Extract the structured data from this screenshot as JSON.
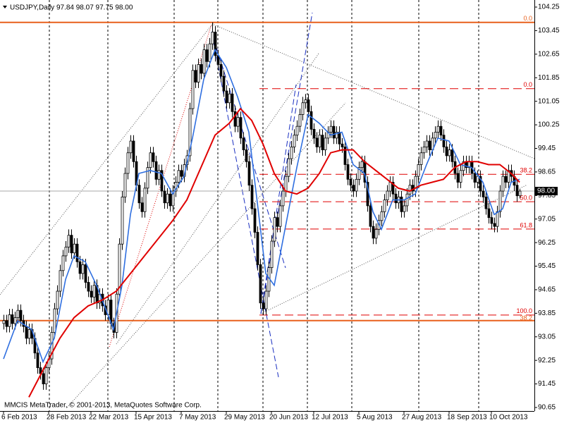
{
  "chart_data": {
    "type": "candlestick",
    "title": "USDJPY,Daily  97.84 98.07 97.75 98.00",
    "watermark": "MMCIS MetaTrader, © 2001-2013, MetaQuotes Software Corp.",
    "ylim": [
      90.53,
      104.49
    ],
    "yticks": [
      104.25,
      103.45,
      102.65,
      101.85,
      101.05,
      100.25,
      99.45,
      98.65,
      97.85,
      97.05,
      96.25,
      95.45,
      94.65,
      93.85,
      93.05,
      92.25,
      91.45,
      90.65
    ],
    "xlim": [
      -1.25,
      188.25
    ],
    "xticks": [
      {
        "value": 0,
        "label": "6 Feb 2013"
      },
      {
        "value": 16,
        "label": "28 Feb 2013"
      },
      {
        "value": 31,
        "label": "22 Mar 2013"
      },
      {
        "value": 47,
        "label": "15 Apr 2013"
      },
      {
        "value": 63,
        "label": "7 May 2013"
      },
      {
        "value": 79,
        "label": "29 May 2013"
      },
      {
        "value": 95,
        "label": "20 Jun 2013"
      },
      {
        "value": 110,
        "label": "12 Jul 2013"
      },
      {
        "value": 126,
        "label": "5 Aug 2013"
      },
      {
        "value": 142,
        "label": "27 Aug 2013"
      },
      {
        "value": 158,
        "label": "18 Sep 2013"
      },
      {
        "value": 173,
        "label": "10 Oct 2013"
      }
    ],
    "current_price": {
      "value": 98.0,
      "label": "98.00"
    },
    "up_color": "#ffffff",
    "down_color": "#000000",
    "ohlc": [
      [
        93.5,
        93.8,
        93.3,
        93.6
      ],
      [
        93.6,
        93.8,
        93.2,
        93.4
      ],
      [
        93.4,
        94.0,
        93.2,
        93.8
      ],
      [
        93.8,
        94.0,
        93.3,
        93.5
      ],
      [
        93.5,
        93.9,
        93.3,
        93.7
      ],
      [
        93.7,
        94.15,
        93.5,
        93.95
      ],
      [
        93.95,
        94.15,
        93.4,
        93.6
      ],
      [
        93.6,
        93.8,
        93.2,
        93.4
      ],
      [
        93.4,
        93.6,
        92.8,
        93.0
      ],
      [
        93.0,
        93.5,
        92.8,
        93.3
      ],
      [
        93.3,
        93.5,
        92.8,
        93.0
      ],
      [
        93.0,
        93.2,
        92.3,
        92.5
      ],
      [
        92.5,
        92.7,
        91.8,
        92.0
      ],
      [
        92.0,
        92.2,
        91.6,
        91.8
      ],
      [
        91.8,
        92.0,
        91.25,
        91.45
      ],
      [
        91.45,
        92.2,
        91.25,
        92.0
      ],
      [
        92.0,
        92.5,
        91.8,
        92.3
      ],
      [
        92.3,
        93.4,
        92.1,
        93.2
      ],
      [
        93.2,
        94.2,
        93.0,
        94.0
      ],
      [
        94.0,
        94.8,
        93.8,
        94.6
      ],
      [
        94.6,
        95.5,
        94.4,
        95.3
      ],
      [
        95.3,
        96.0,
        95.1,
        95.8
      ],
      [
        95.8,
        96.3,
        95.6,
        96.1
      ],
      [
        96.1,
        96.7,
        95.9,
        96.5
      ],
      [
        96.5,
        96.7,
        95.7,
        95.9
      ],
      [
        95.9,
        96.4,
        95.7,
        96.2
      ],
      [
        96.2,
        96.4,
        95.4,
        95.6
      ],
      [
        95.6,
        95.8,
        95.0,
        95.2
      ],
      [
        95.2,
        95.7,
        95.0,
        95.5
      ],
      [
        95.5,
        95.7,
        94.7,
        94.9
      ],
      [
        94.9,
        95.1,
        94.4,
        94.6
      ],
      [
        94.6,
        94.8,
        94.2,
        94.4
      ],
      [
        94.4,
        95.0,
        94.2,
        94.8
      ],
      [
        94.8,
        95.0,
        94.0,
        94.2
      ],
      [
        94.2,
        94.7,
        94.0,
        94.5
      ],
      [
        94.5,
        94.7,
        93.9,
        94.1
      ],
      [
        94.1,
        94.3,
        93.6,
        93.8
      ],
      [
        93.8,
        94.5,
        93.6,
        94.3
      ],
      [
        94.3,
        94.5,
        93.3,
        93.5
      ],
      [
        93.5,
        93.7,
        93.0,
        93.2
      ],
      [
        93.2,
        94.7,
        93.0,
        94.5
      ],
      [
        94.5,
        96.4,
        94.3,
        96.2
      ],
      [
        96.2,
        98.0,
        96.0,
        97.8
      ],
      [
        97.8,
        98.8,
        97.6,
        98.6
      ],
      [
        98.6,
        99.5,
        98.4,
        99.3
      ],
      [
        99.3,
        99.9,
        99.1,
        99.7
      ],
      [
        99.7,
        99.9,
        98.8,
        99.0
      ],
      [
        99.0,
        99.2,
        98.0,
        98.2
      ],
      [
        98.2,
        98.4,
        97.4,
        97.6
      ],
      [
        97.6,
        97.8,
        97.1,
        97.3
      ],
      [
        97.3,
        98.3,
        97.1,
        98.1
      ],
      [
        98.1,
        99.0,
        97.9,
        98.8
      ],
      [
        98.8,
        99.5,
        98.6,
        99.3
      ],
      [
        99.3,
        99.5,
        98.8,
        99.0
      ],
      [
        99.0,
        99.2,
        98.2,
        98.4
      ],
      [
        98.4,
        98.9,
        98.2,
        98.7
      ],
      [
        98.7,
        98.9,
        97.8,
        98.0
      ],
      [
        98.0,
        98.2,
        97.4,
        97.6
      ],
      [
        97.6,
        98.1,
        97.4,
        97.9
      ],
      [
        97.9,
        98.1,
        97.3,
        97.5
      ],
      [
        97.5,
        98.2,
        97.3,
        98.0
      ],
      [
        98.0,
        98.5,
        97.8,
        98.3
      ],
      [
        98.3,
        98.9,
        98.1,
        98.7
      ],
      [
        98.7,
        98.9,
        98.3,
        98.5
      ],
      [
        98.5,
        99.1,
        98.3,
        98.9
      ],
      [
        98.9,
        99.4,
        98.7,
        99.2
      ],
      [
        99.2,
        101.0,
        99.0,
        100.8
      ],
      [
        100.8,
        102.3,
        100.6,
        102.1
      ],
      [
        102.1,
        102.3,
        101.5,
        101.7
      ],
      [
        101.7,
        102.5,
        101.5,
        102.3
      ],
      [
        102.3,
        102.5,
        101.8,
        102.0
      ],
      [
        102.0,
        103.0,
        101.8,
        102.8
      ],
      [
        102.8,
        103.0,
        102.2,
        102.4
      ],
      [
        102.4,
        103.2,
        102.2,
        103.0
      ],
      [
        103.0,
        103.73,
        102.8,
        103.4
      ],
      [
        103.4,
        103.6,
        102.4,
        102.6
      ],
      [
        102.6,
        102.8,
        102.1,
        102.3
      ],
      [
        102.3,
        102.5,
        101.7,
        101.9
      ],
      [
        101.9,
        102.1,
        101.2,
        101.4
      ],
      [
        101.4,
        101.6,
        100.8,
        101.0
      ],
      [
        101.0,
        101.5,
        100.8,
        101.3
      ],
      [
        101.3,
        101.5,
        100.5,
        100.7
      ],
      [
        100.7,
        100.9,
        100.0,
        100.2
      ],
      [
        100.2,
        100.7,
        100.0,
        100.5
      ],
      [
        100.5,
        100.7,
        99.6,
        99.8
      ],
      [
        99.8,
        100.0,
        99.2,
        99.4
      ],
      [
        99.4,
        99.6,
        98.8,
        99.0
      ],
      [
        99.0,
        99.2,
        98.0,
        98.2
      ],
      [
        98.2,
        98.4,
        97.2,
        97.4
      ],
      [
        97.4,
        97.6,
        96.4,
        96.6
      ],
      [
        96.6,
        96.8,
        95.3,
        95.5
      ],
      [
        95.5,
        95.7,
        94.0,
        94.2
      ],
      [
        94.2,
        94.4,
        93.79,
        94.0
      ],
      [
        94.0,
        94.8,
        93.8,
        94.6
      ],
      [
        94.6,
        95.6,
        94.4,
        95.4
      ],
      [
        95.4,
        96.5,
        95.2,
        96.3
      ],
      [
        96.3,
        97.3,
        96.1,
        97.1
      ],
      [
        97.1,
        97.3,
        96.6,
        96.8
      ],
      [
        96.8,
        97.7,
        96.6,
        97.5
      ],
      [
        97.5,
        98.2,
        97.3,
        98.0
      ],
      [
        98.0,
        98.7,
        97.8,
        98.5
      ],
      [
        98.5,
        99.3,
        98.3,
        99.1
      ],
      [
        99.1,
        99.7,
        98.9,
        99.5
      ],
      [
        99.5,
        100.1,
        99.3,
        99.9
      ],
      [
        99.9,
        100.4,
        99.7,
        100.2
      ],
      [
        100.2,
        100.8,
        100.0,
        100.6
      ],
      [
        100.6,
        101.2,
        100.4,
        101.0
      ],
      [
        101.0,
        101.3,
        100.8,
        101.1
      ],
      [
        101.1,
        101.3,
        100.5,
        100.7
      ],
      [
        100.7,
        100.9,
        99.9,
        100.1
      ],
      [
        100.1,
        100.3,
        99.6,
        99.8
      ],
      [
        99.8,
        100.0,
        99.3,
        99.5
      ],
      [
        99.5,
        100.1,
        99.3,
        99.9
      ],
      [
        99.9,
        100.1,
        99.2,
        99.4
      ],
      [
        99.4,
        100.0,
        99.2,
        99.8
      ],
      [
        99.8,
        100.2,
        99.6,
        100.0
      ],
      [
        100.0,
        100.4,
        99.8,
        100.2
      ],
      [
        100.2,
        100.4,
        99.6,
        99.8
      ],
      [
        99.8,
        100.2,
        99.6,
        100.0
      ],
      [
        100.0,
        100.2,
        99.4,
        99.6
      ],
      [
        99.6,
        99.8,
        99.3,
        99.5
      ],
      [
        99.5,
        99.7,
        98.7,
        98.9
      ],
      [
        98.9,
        99.1,
        98.2,
        98.4
      ],
      [
        98.4,
        98.6,
        98.0,
        98.2
      ],
      [
        98.2,
        98.4,
        97.8,
        98.0
      ],
      [
        98.0,
        98.6,
        97.8,
        98.4
      ],
      [
        98.4,
        99.0,
        98.2,
        98.8
      ],
      [
        98.8,
        99.2,
        98.6,
        99.0
      ],
      [
        99.0,
        99.2,
        98.1,
        98.3
      ],
      [
        98.3,
        98.5,
        97.3,
        97.5
      ],
      [
        97.5,
        97.7,
        96.6,
        96.8
      ],
      [
        96.8,
        97.0,
        96.2,
        96.4
      ],
      [
        96.4,
        96.9,
        96.2,
        96.7
      ],
      [
        96.7,
        97.2,
        96.5,
        97.0
      ],
      [
        97.0,
        97.5,
        96.8,
        97.3
      ],
      [
        97.3,
        97.9,
        97.1,
        97.7
      ],
      [
        97.7,
        98.2,
        97.5,
        98.0
      ],
      [
        98.0,
        98.5,
        97.8,
        98.3
      ],
      [
        98.3,
        98.5,
        97.7,
        97.9
      ],
      [
        97.9,
        98.1,
        97.4,
        97.6
      ],
      [
        97.6,
        98.0,
        97.4,
        97.8
      ],
      [
        97.8,
        98.0,
        97.1,
        97.3
      ],
      [
        97.3,
        97.7,
        97.1,
        97.5
      ],
      [
        97.5,
        98.1,
        97.3,
        97.9
      ],
      [
        97.9,
        98.4,
        97.7,
        98.2
      ],
      [
        98.2,
        98.4,
        97.8,
        98.0
      ],
      [
        98.0,
        98.7,
        97.8,
        98.5
      ],
      [
        98.5,
        99.1,
        98.3,
        98.9
      ],
      [
        98.9,
        99.5,
        98.7,
        99.3
      ],
      [
        99.3,
        99.7,
        99.1,
        99.5
      ],
      [
        99.5,
        99.9,
        99.3,
        99.7
      ],
      [
        99.7,
        99.9,
        99.2,
        99.4
      ],
      [
        99.4,
        100.0,
        99.2,
        99.8
      ],
      [
        99.8,
        100.2,
        99.6,
        100.0
      ],
      [
        100.0,
        100.4,
        99.8,
        100.2
      ],
      [
        100.2,
        100.4,
        99.7,
        99.9
      ],
      [
        99.9,
        100.1,
        99.3,
        99.5
      ],
      [
        99.5,
        99.7,
        99.0,
        99.2
      ],
      [
        99.2,
        99.6,
        99.0,
        99.4
      ],
      [
        99.4,
        99.6,
        98.8,
        99.0
      ],
      [
        99.0,
        99.2,
        98.4,
        98.6
      ],
      [
        98.6,
        98.8,
        98.1,
        98.3
      ],
      [
        98.3,
        98.9,
        98.1,
        98.7
      ],
      [
        98.7,
        99.2,
        98.5,
        99.0
      ],
      [
        99.0,
        99.2,
        98.6,
        98.8
      ],
      [
        98.8,
        99.2,
        98.6,
        99.0
      ],
      [
        99.0,
        99.2,
        98.4,
        98.6
      ],
      [
        98.6,
        98.8,
        98.1,
        98.3
      ],
      [
        98.3,
        98.7,
        98.1,
        98.5
      ],
      [
        98.5,
        98.7,
        97.8,
        98.0
      ],
      [
        98.0,
        98.2,
        97.6,
        97.8
      ],
      [
        97.8,
        98.0,
        97.2,
        97.4
      ],
      [
        97.4,
        97.6,
        96.9,
        97.1
      ],
      [
        97.1,
        97.3,
        96.7,
        96.9
      ],
      [
        96.9,
        97.1,
        96.6,
        96.8
      ],
      [
        96.8,
        97.5,
        96.6,
        97.3
      ],
      [
        97.3,
        98.2,
        97.1,
        98.0
      ],
      [
        98.0,
        98.7,
        97.8,
        98.5
      ],
      [
        98.5,
        98.7,
        98.1,
        98.3
      ],
      [
        98.3,
        98.9,
        98.1,
        98.7
      ],
      [
        98.7,
        98.9,
        98.3,
        98.5
      ],
      [
        98.5,
        98.7,
        98.0,
        98.2
      ],
      [
        98.2,
        98.4,
        97.64,
        97.84
      ],
      [
        97.84,
        98.07,
        97.75,
        98.0
      ]
    ],
    "series": [
      {
        "color": "#2f6fe0",
        "x": [
          0,
          5,
          10,
          14,
          18,
          22,
          25,
          29,
          33,
          39,
          42,
          45,
          48,
          52,
          56,
          60,
          64,
          67,
          71,
          75,
          79,
          83,
          87,
          90,
          93,
          96,
          100,
          104,
          108,
          112,
          116,
          120,
          124,
          128,
          131,
          134,
          138,
          142,
          146,
          150,
          154,
          158,
          162,
          166,
          170,
          174,
          177,
          180,
          183
        ],
        "values": [
          92.3,
          93.6,
          93.3,
          92.2,
          93.0,
          95.0,
          95.8,
          95.6,
          94.8,
          93.3,
          94.8,
          97.2,
          98.6,
          98.7,
          98.6,
          97.9,
          98.5,
          99.8,
          101.8,
          102.8,
          102.2,
          101.2,
          100.0,
          97.6,
          95.2,
          94.8,
          96.8,
          98.8,
          100.6,
          100.3,
          99.9,
          100.0,
          98.9,
          98.6,
          97.3,
          96.7,
          97.7,
          97.7,
          97.9,
          98.9,
          99.8,
          99.7,
          98.9,
          98.8,
          98.3,
          97.2,
          97.4,
          98.3,
          98.4
        ]
      },
      {
        "color": "#e00000",
        "x": [
          9,
          15,
          20,
          25,
          30,
          35,
          40,
          45,
          50,
          55,
          60,
          65,
          70,
          75,
          80,
          84,
          88,
          92,
          96,
          100,
          104,
          108,
          112,
          116,
          120,
          124,
          128,
          132,
          136,
          140,
          144,
          148,
          152,
          156,
          160,
          164,
          168,
          172,
          176,
          180,
          183
        ],
        "values": [
          91.0,
          92.1,
          93.0,
          93.7,
          94.1,
          94.3,
          94.6,
          95.2,
          95.8,
          96.4,
          97.0,
          97.7,
          98.8,
          99.9,
          100.3,
          100.8,
          100.4,
          99.6,
          98.6,
          98.0,
          97.9,
          98.1,
          98.6,
          99.3,
          99.4,
          99.4,
          99.0,
          98.7,
          98.4,
          98.1,
          98.0,
          98.2,
          98.3,
          98.4,
          98.8,
          99.0,
          99.0,
          98.9,
          98.9,
          98.6,
          98.3
        ]
      }
    ],
    "fibonacci": [
      {
        "color": "#e8601c",
        "levels": [
          {
            "value": 103.73,
            "label": "0.0"
          },
          {
            "value": 93.6,
            "label": "38.2"
          }
        ]
      },
      {
        "color": "#e00000",
        "levels": [
          {
            "value": 101.48,
            "label": "0.0"
          },
          {
            "value": 98.57,
            "label": "38.2"
          },
          {
            "value": 97.64,
            "label": "50.0"
          },
          {
            "value": 96.71,
            "label": "61.8"
          },
          {
            "value": 93.79,
            "label": "100.0"
          }
        ]
      }
    ]
  }
}
